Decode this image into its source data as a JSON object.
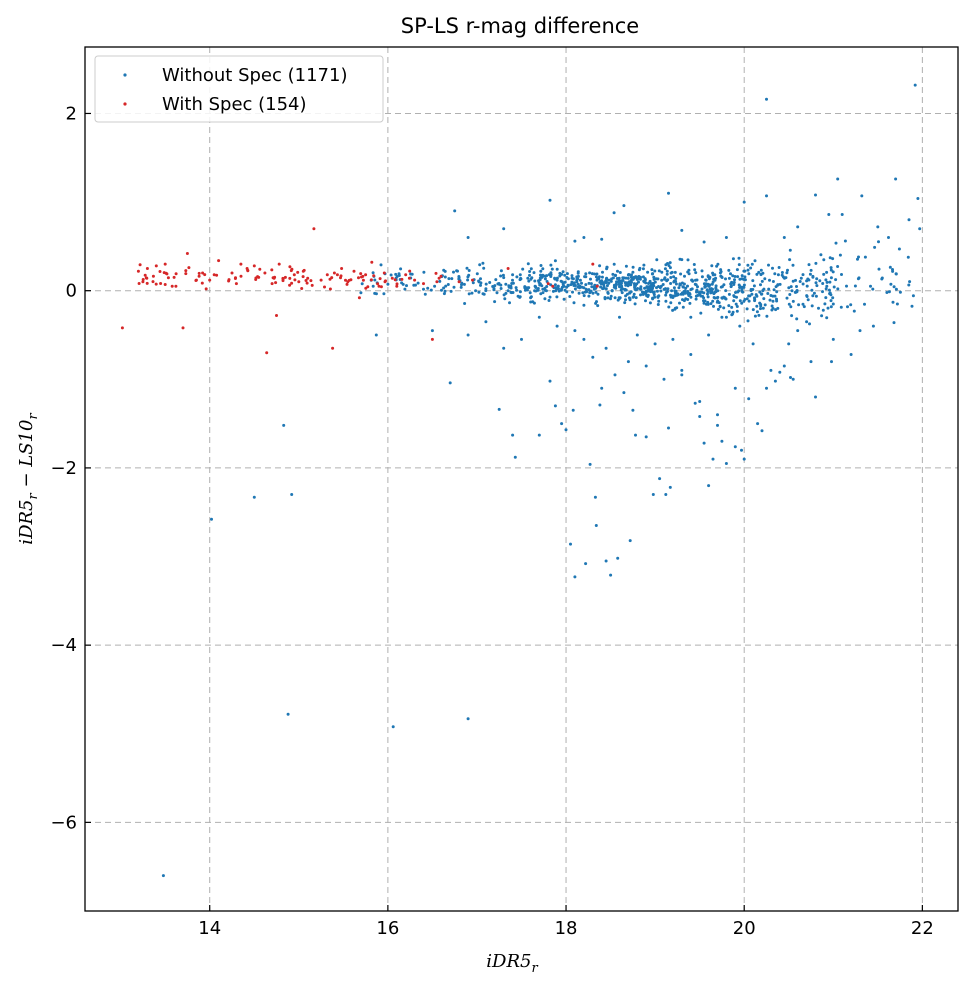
{
  "chart_data": {
    "type": "scatter",
    "title": "SP-LS r-mag difference",
    "xlabel": {
      "main": "iDR5",
      "sub": "r"
    },
    "ylabel": {
      "a": "iDR5",
      "a_sub": "r",
      "op": " − ",
      "b": "LS10",
      "b_sub": "r"
    },
    "xlim": [
      12.6,
      22.4
    ],
    "ylim": [
      -7.0,
      2.75
    ],
    "xticks": [
      14,
      16,
      18,
      20,
      22
    ],
    "yticks": [
      2,
      0,
      -2,
      -4,
      -6
    ],
    "xtick_labels": [
      "14",
      "16",
      "18",
      "20",
      "22"
    ],
    "ytick_labels": [
      "2",
      "0",
      "−2",
      "−4",
      "−6"
    ],
    "grid": true,
    "legend_position": "upper-left",
    "series": [
      {
        "name": "Without Spec (1171)",
        "color": "#1f77b4",
        "points": [
          [
            13.48,
            -6.6
          ],
          [
            14.88,
            -4.78
          ],
          [
            16.06,
            -4.92
          ],
          [
            16.9,
            -4.83
          ],
          [
            14.02,
            -2.58
          ],
          [
            14.5,
            -2.33
          ],
          [
            14.92,
            -2.3
          ],
          [
            14.83,
            -1.52
          ],
          [
            15.87,
            -0.5
          ],
          [
            16.7,
            -1.04
          ],
          [
            17.25,
            -1.34
          ],
          [
            17.4,
            -1.63
          ],
          [
            17.43,
            -1.88
          ],
          [
            17.7,
            -1.63
          ],
          [
            17.82,
            -1.02
          ],
          [
            17.88,
            -1.3
          ],
          [
            17.95,
            -1.5
          ],
          [
            18.0,
            -1.57
          ],
          [
            18.08,
            -1.35
          ],
          [
            18.05,
            -2.86
          ],
          [
            18.1,
            -3.23
          ],
          [
            18.22,
            -3.08
          ],
          [
            18.27,
            -1.96
          ],
          [
            18.33,
            -2.33
          ],
          [
            18.34,
            -2.65
          ],
          [
            18.38,
            -1.29
          ],
          [
            18.45,
            -3.05
          ],
          [
            18.5,
            -3.21
          ],
          [
            18.58,
            -3.02
          ],
          [
            18.72,
            -2.82
          ],
          [
            18.78,
            -1.63
          ],
          [
            18.98,
            -2.3
          ],
          [
            19.05,
            -2.12
          ],
          [
            19.12,
            -2.3
          ],
          [
            19.17,
            -2.22
          ],
          [
            19.3,
            -0.9
          ],
          [
            19.4,
            -0.72
          ],
          [
            19.45,
            -1.27
          ],
          [
            19.5,
            -1.42
          ],
          [
            19.55,
            -1.72
          ],
          [
            19.6,
            -2.2
          ],
          [
            19.65,
            -1.9
          ],
          [
            19.7,
            -1.52
          ],
          [
            19.8,
            -1.95
          ],
          [
            19.9,
            -1.76
          ],
          [
            19.97,
            -1.8
          ],
          [
            20.05,
            -1.22
          ],
          [
            20.15,
            -1.5
          ],
          [
            20.2,
            -1.58
          ],
          [
            20.4,
            -0.92
          ],
          [
            20.52,
            -0.98
          ],
          [
            20.8,
            -1.2
          ],
          [
            20.25,
            2.16
          ],
          [
            21.92,
            2.32
          ],
          [
            21.95,
            1.04
          ],
          [
            21.7,
            1.26
          ],
          [
            21.05,
            1.26
          ],
          [
            20.25,
            1.07
          ],
          [
            19.15,
            1.1
          ],
          [
            18.65,
            0.96
          ],
          [
            17.82,
            1.02
          ],
          [
            18.54,
            0.88
          ],
          [
            16.75,
            0.9
          ],
          [
            20.0,
            1.0
          ],
          [
            20.8,
            1.08
          ],
          [
            21.32,
            1.07
          ],
          [
            21.85,
            0.8
          ],
          [
            21.97,
            0.7
          ],
          [
            21.62,
            0.6
          ],
          [
            21.5,
            0.72
          ],
          [
            21.1,
            0.86
          ],
          [
            20.95,
            0.86
          ],
          [
            20.6,
            0.72
          ],
          [
            19.3,
            0.68
          ],
          [
            19.55,
            0.55
          ],
          [
            19.8,
            0.6
          ],
          [
            20.45,
            0.6
          ],
          [
            16.9,
            0.6
          ],
          [
            17.3,
            0.7
          ],
          [
            18.1,
            0.56
          ],
          [
            18.2,
            0.6
          ],
          [
            18.4,
            0.58
          ],
          [
            21.72,
            -0.15
          ],
          [
            21.67,
            -0.13
          ],
          [
            21.45,
            -0.4
          ],
          [
            21.3,
            -0.45
          ],
          [
            21.2,
            -0.72
          ],
          [
            20.98,
            -0.8
          ],
          [
            21.0,
            -0.55
          ],
          [
            20.7,
            -0.35
          ],
          [
            20.6,
            -0.45
          ],
          [
            20.5,
            -0.6
          ],
          [
            20.45,
            -0.85
          ],
          [
            20.35,
            -1.02
          ],
          [
            20.25,
            -1.1
          ],
          [
            20.1,
            -0.6
          ],
          [
            19.95,
            -0.4
          ],
          [
            19.8,
            -0.3
          ],
          [
            19.6,
            -0.5
          ],
          [
            19.4,
            -0.3
          ],
          [
            19.2,
            -0.55
          ],
          [
            19.0,
            -0.6
          ],
          [
            18.8,
            -0.5
          ],
          [
            18.7,
            -0.8
          ],
          [
            18.55,
            -0.95
          ],
          [
            18.45,
            -0.65
          ],
          [
            18.3,
            -0.75
          ],
          [
            18.2,
            -0.55
          ],
          [
            18.1,
            -0.45
          ],
          [
            17.9,
            -0.4
          ],
          [
            17.7,
            -0.3
          ],
          [
            17.5,
            -0.55
          ],
          [
            17.3,
            -0.65
          ],
          [
            17.1,
            -0.35
          ],
          [
            16.9,
            -0.5
          ],
          [
            16.5,
            -0.45
          ],
          [
            18.6,
            -0.3
          ],
          [
            18.9,
            -0.85
          ],
          [
            19.1,
            -1.0
          ],
          [
            19.3,
            -0.95
          ],
          [
            19.7,
            -1.4
          ],
          [
            19.9,
            -1.1
          ],
          [
            20.3,
            -0.9
          ],
          [
            20.55,
            -1.0
          ],
          [
            20.75,
            -0.8
          ],
          [
            18.4,
            -1.1
          ],
          [
            18.65,
            -1.15
          ],
          [
            19.5,
            -1.25
          ],
          [
            19.75,
            -1.7
          ],
          [
            20.0,
            -1.9
          ],
          [
            19.15,
            -1.55
          ],
          [
            18.75,
            -1.35
          ],
          [
            18.9,
            -1.65
          ]
        ],
        "clusters": [
          {
            "x_range": [
              15.6,
              16.6
            ],
            "center": 0.1,
            "spread": 0.12,
            "n": 40
          },
          {
            "x_range": [
              16.6,
              17.6
            ],
            "center": 0.08,
            "spread": 0.14,
            "n": 110
          },
          {
            "x_range": [
              17.6,
              18.4
            ],
            "center": 0.08,
            "spread": 0.14,
            "n": 170
          },
          {
            "x_range": [
              18.4,
              19.0
            ],
            "center": 0.06,
            "spread": 0.14,
            "n": 210
          },
          {
            "x_range": [
              19.0,
              19.7
            ],
            "center": 0.04,
            "spread": 0.18,
            "n": 200
          },
          {
            "x_range": [
              19.7,
              20.4
            ],
            "center": 0.02,
            "spread": 0.22,
            "n": 160
          },
          {
            "x_range": [
              20.4,
              21.0
            ],
            "center": 0.05,
            "spread": 0.3,
            "n": 90
          },
          {
            "x_range": [
              21.0,
              21.9
            ],
            "center": 0.15,
            "spread": 0.35,
            "n": 45
          }
        ]
      },
      {
        "name": "With Spec (154)",
        "color": "#d62728",
        "points": [
          [
            13.02,
            -0.42
          ],
          [
            13.7,
            -0.42
          ],
          [
            14.64,
            -0.7
          ],
          [
            14.75,
            -0.28
          ],
          [
            15.38,
            -0.65
          ],
          [
            16.5,
            -0.55
          ],
          [
            15.17,
            0.7
          ],
          [
            13.75,
            0.42
          ],
          [
            13.2,
            0.22
          ],
          [
            13.3,
            0.25
          ],
          [
            13.4,
            0.28
          ],
          [
            13.5,
            0.3
          ],
          [
            13.25,
            0.1
          ],
          [
            13.6,
            0.15
          ],
          [
            13.62,
            0.05
          ],
          [
            13.85,
            0.12
          ],
          [
            13.92,
            0.2
          ],
          [
            14.0,
            0.12
          ],
          [
            14.05,
            0.18
          ],
          [
            14.1,
            0.34
          ],
          [
            13.96,
            0.02
          ],
          [
            14.25,
            0.2
          ],
          [
            14.3,
            0.08
          ],
          [
            14.35,
            0.3
          ],
          [
            14.42,
            0.25
          ],
          [
            14.5,
            0.28
          ],
          [
            14.55,
            0.15
          ],
          [
            14.62,
            0.2
          ],
          [
            14.7,
            0.08
          ],
          [
            14.78,
            0.3
          ],
          [
            14.85,
            0.15
          ],
          [
            14.9,
            0.27
          ],
          [
            14.95,
            0.18
          ],
          [
            15.0,
            0.1
          ],
          [
            15.05,
            0.22
          ],
          [
            15.1,
            0.14
          ],
          [
            15.15,
            0.06
          ],
          [
            15.25,
            0.12
          ],
          [
            15.32,
            0.18
          ],
          [
            15.4,
            0.2
          ],
          [
            15.48,
            0.25
          ],
          [
            15.55,
            0.1
          ],
          [
            15.62,
            0.22
          ],
          [
            15.68,
            -0.08
          ],
          [
            15.75,
            0.18
          ],
          [
            15.82,
            0.32
          ],
          [
            15.9,
            0.05
          ],
          [
            15.96,
            0.2
          ],
          [
            16.05,
            0.14
          ],
          [
            16.1,
            0.05
          ],
          [
            16.2,
            0.18
          ],
          [
            16.3,
            0.12
          ],
          [
            16.4,
            0.08
          ],
          [
            16.55,
            0.1
          ],
          [
            17.8,
            0.08
          ],
          [
            17.85,
            0.05
          ],
          [
            18.3,
            0.3
          ],
          [
            18.35,
            0.05
          ],
          [
            17.35,
            0.25
          ],
          [
            16.8,
            0.1
          ],
          [
            16.95,
            0.12
          ]
        ],
        "clusters": [
          {
            "x_range": [
              13.2,
              15.2
            ],
            "center": 0.15,
            "spread": 0.09,
            "n": 60
          },
          {
            "x_range": [
              15.2,
              16.6
            ],
            "center": 0.14,
            "spread": 0.09,
            "n": 33
          }
        ]
      }
    ]
  }
}
